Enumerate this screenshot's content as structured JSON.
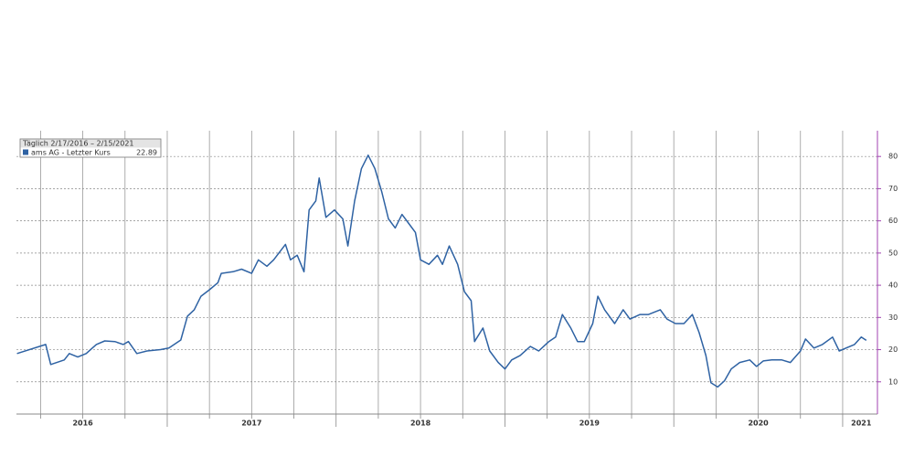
{
  "chart_data": {
    "type": "line",
    "legend_header": "Täglich 2/17/2016 – 2/15/2021",
    "last_value": 22.89,
    "xlim": [
      2016.107,
      2021.206
    ],
    "xticks": [
      {
        "value": 2016.5,
        "label": "2016"
      },
      {
        "value": 2017.5,
        "label": "2017"
      },
      {
        "value": 2018.5,
        "label": "2018"
      },
      {
        "value": 2019.5,
        "label": "2019"
      },
      {
        "value": 2020.5,
        "label": "2020"
      },
      {
        "value": 2021.11,
        "label": "2021"
      }
    ],
    "xgrid": [
      2016.25,
      2016.5,
      2016.75,
      2017,
      2017.25,
      2017.5,
      2017.75,
      2018,
      2018.25,
      2018.5,
      2018.75,
      2019,
      2019.25,
      2019.5,
      2019.75,
      2020,
      2020.25,
      2020.5,
      2020.75,
      2021
    ],
    "ylim": [
      0,
      88
    ],
    "yticks": [
      10,
      20,
      30,
      40,
      50,
      60,
      70,
      80
    ],
    "grid": true,
    "series": [
      {
        "name": "ams AG - Letzter Kurs",
        "color": "#2e62a3",
        "x": [
          2016.11,
          2016.28,
          2016.31,
          2016.39,
          2016.42,
          2016.47,
          2016.52,
          2016.58,
          2016.63,
          2016.69,
          2016.74,
          2016.77,
          2016.82,
          2016.88,
          2016.96,
          2017.01,
          2017.08,
          2017.12,
          2017.16,
          2017.2,
          2017.25,
          2017.3,
          2017.32,
          2017.39,
          2017.44,
          2017.5,
          2017.54,
          2017.59,
          2017.63,
          2017.7,
          2017.73,
          2017.77,
          2017.81,
          2017.84,
          2017.88,
          2017.9,
          2017.94,
          2017.99,
          2018.04,
          2018.07,
          2018.11,
          2018.15,
          2018.19,
          2018.23,
          2018.27,
          2018.31,
          2018.35,
          2018.39,
          2018.43,
          2018.47,
          2018.5,
          2018.55,
          2018.6,
          2018.63,
          2018.67,
          2018.72,
          2018.76,
          2018.8,
          2018.82,
          2018.87,
          2018.91,
          2018.96,
          2019.0,
          2019.04,
          2019.09,
          2019.15,
          2019.2,
          2019.26,
          2019.3,
          2019.34,
          2019.39,
          2019.43,
          2019.47,
          2019.52,
          2019.55,
          2019.59,
          2019.65,
          2019.7,
          2019.74,
          2019.8,
          2019.85,
          2019.92,
          2019.96,
          2020.01,
          2020.06,
          2020.11,
          2020.15,
          2020.19,
          2020.22,
          2020.26,
          2020.3,
          2020.34,
          2020.39,
          2020.45,
          2020.49,
          2020.53,
          2020.58,
          2020.64,
          2020.69,
          2020.75,
          2020.78,
          2020.83,
          2020.88,
          2020.94,
          2020.98,
          2021.02,
          2021.07,
          2021.11,
          2021.14
        ],
        "values": [
          18.8,
          21.6,
          15.4,
          16.8,
          18.8,
          17.7,
          18.8,
          21.6,
          22.7,
          22.5,
          21.6,
          22.5,
          18.8,
          19.6,
          20,
          20.5,
          23,
          30.4,
          32.4,
          36.6,
          38.6,
          40.8,
          43.7,
          44.2,
          45,
          43.7,
          47.9,
          45.9,
          47.9,
          52.7,
          47.9,
          49.3,
          44.2,
          63.4,
          66.2,
          73.3,
          61.1,
          63.4,
          60.6,
          52.2,
          66.2,
          76.2,
          80.4,
          76.2,
          69.1,
          60.6,
          57.8,
          62,
          59.2,
          56.4,
          47.9,
          46.5,
          49.3,
          46.5,
          52.2,
          46.5,
          38,
          35.2,
          22.5,
          26.7,
          19.6,
          16,
          14,
          16.8,
          18.2,
          21,
          19.6,
          22.5,
          23.9,
          30.9,
          26.7,
          22.5,
          22.5,
          28.1,
          36.6,
          32.4,
          28.1,
          32.4,
          29.5,
          30.9,
          30.9,
          32.4,
          29.5,
          28.1,
          28.1,
          30.9,
          25.3,
          18.2,
          9.7,
          8.4,
          10.3,
          14,
          16,
          16.8,
          14.8,
          16.5,
          16.8,
          16.8,
          16,
          19.6,
          23.3,
          20.5,
          21.6,
          23.9,
          19.6,
          20.5,
          21.6,
          23.9,
          22.89
        ]
      }
    ]
  }
}
